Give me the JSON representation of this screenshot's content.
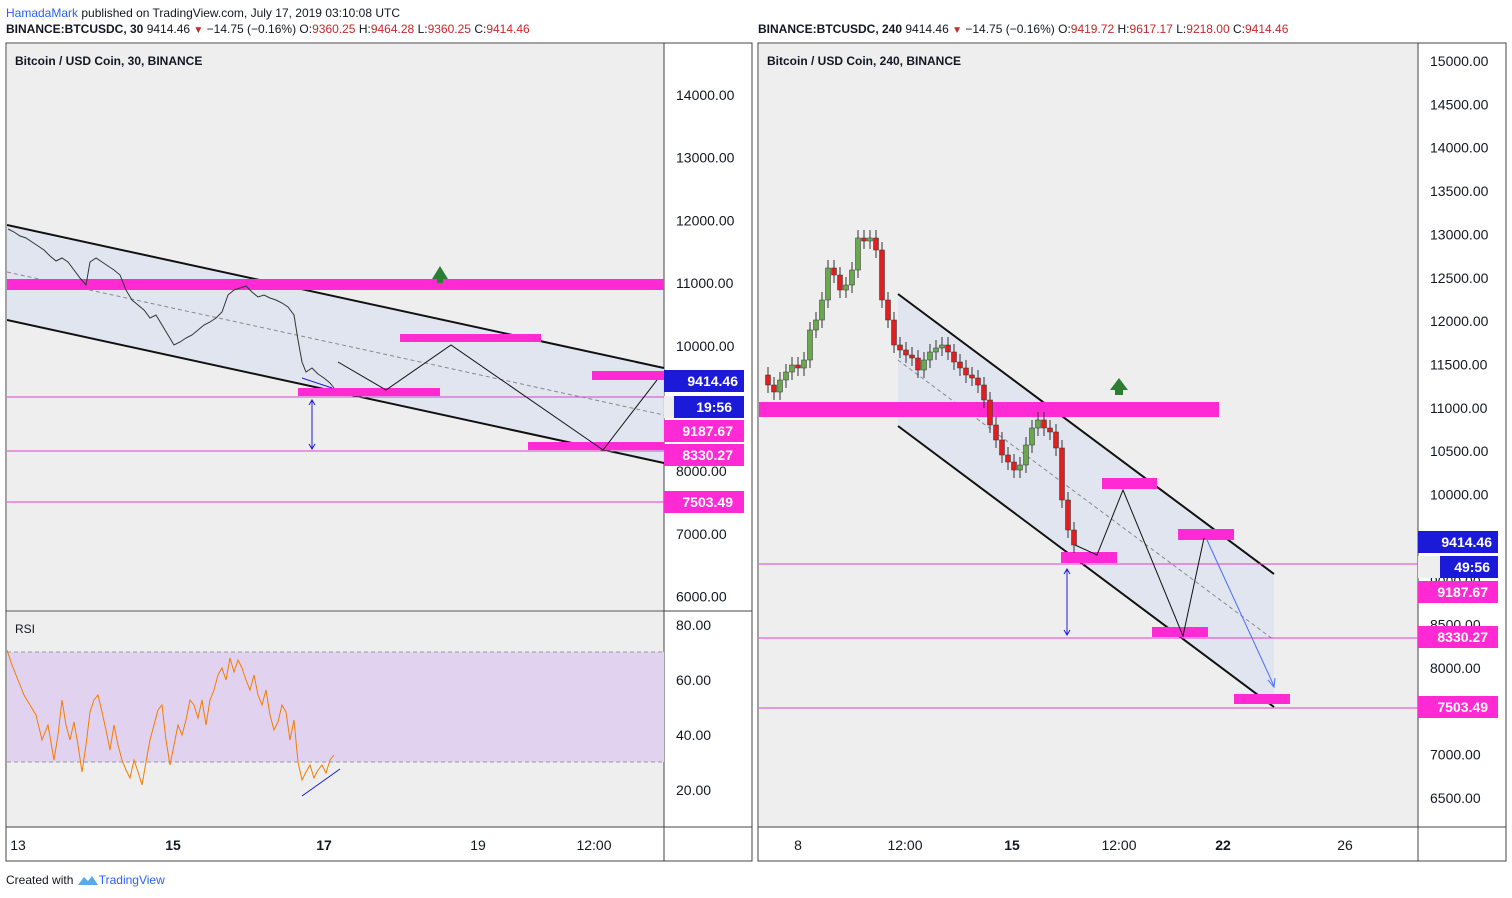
{
  "header": {
    "user": "HamadaMark",
    "published": "published on TradingView.com, July 17, 2019 03:10:08 UTC"
  },
  "left_panel": {
    "symbol": "BINANCE:BTCUSDC, 30",
    "last": "9414.46",
    "change": "−14.75 (−0.16%)",
    "o_label": "O:",
    "o": "9360.25",
    "h_label": "H:",
    "h": "9464.28",
    "l_label": "L:",
    "l": "9360.25",
    "c_label": "C:",
    "c": "9414.46",
    "title": "Bitcoin / USD Coin, 30, BINANCE",
    "indicator": "RSI",
    "price_ticks": [
      "14000.00",
      "13000.00",
      "12000.00",
      "11000.00",
      "10000.00",
      "9000.00",
      "8000.00",
      "7000.00",
      "6000.00"
    ],
    "rsi_ticks": [
      "80.00",
      "60.00",
      "40.00",
      "20.00"
    ],
    "time_ticks": [
      "13",
      "15",
      "17",
      "19",
      "12:00"
    ],
    "badges": {
      "last": "9414.46",
      "countdown": "19:56",
      "level1": "9187.67",
      "level2": "8330.27",
      "level3": "7503.49"
    }
  },
  "right_panel": {
    "symbol": "BINANCE:BTCUSDC, 240",
    "last": "9414.46",
    "change": "−14.75 (−0.16%)",
    "o_label": "O:",
    "o": "9419.72",
    "h_label": "H:",
    "h": "9617.17",
    "l_label": "L:",
    "l": "9218.00",
    "c_label": "C:",
    "c": "9414.46",
    "title": "Bitcoin / USD Coin, 240, BINANCE",
    "price_ticks": [
      "15000.00",
      "14500.00",
      "14000.00",
      "13500.00",
      "13000.00",
      "12500.00",
      "12000.00",
      "11500.00",
      "11000.00",
      "10500.00",
      "10000.00",
      "9500.00",
      "9000.00",
      "8500.00",
      "8000.00",
      "7500.00",
      "7000.00",
      "6500.00"
    ],
    "time_ticks": [
      "8",
      "12:00",
      "15",
      "12:00",
      "22",
      "26"
    ],
    "badges": {
      "last": "9414.46",
      "countdown": "49:56",
      "level1": "9187.67",
      "level2": "8330.27",
      "level3": "7503.49"
    }
  },
  "footer": {
    "created": "Created with",
    "brand": "TradingView"
  },
  "colors": {
    "zone": "#ff2ad4",
    "level": "#e040c8",
    "last_badge": "#1a1ad8",
    "up": "#6aa84f",
    "down": "#e02020",
    "rsi": "#f57c00",
    "arrow_up": "#2e7d32"
  },
  "chart_data": [
    {
      "type": "line",
      "title": "Bitcoin / USD Coin, 30, BINANCE",
      "xlabel": "",
      "ylabel": "",
      "x_ticks": [
        "13",
        "15",
        "17",
        "19",
        "12:00"
      ],
      "ylim": [
        5800,
        14800
      ],
      "series": [
        {
          "x": [
            "13",
            "14",
            "15",
            "16",
            "17"
          ],
          "values": [
            11850,
            10750,
            10050,
            10900,
            9414.46
          ]
        }
      ],
      "levels": [
        9187.67,
        8330.27,
        7503.49
      ],
      "zones": [
        [
          10900,
          11070
        ],
        [
          10070,
          10170
        ],
        [
          9150,
          9280
        ],
        [
          9470,
          9610
        ],
        [
          8330,
          8470
        ]
      ],
      "rsi": {
        "ylim": [
          10,
          85
        ],
        "band": [
          30,
          70
        ],
        "values": [
          68,
          50,
          38,
          29,
          45,
          30,
          40,
          28,
          55,
          33,
          65,
          28,
          36
        ]
      }
    },
    {
      "type": "line",
      "title": "Bitcoin / USD Coin, 240, BINANCE",
      "xlabel": "",
      "ylabel": "",
      "x_ticks": [
        "8",
        "12:00",
        "15",
        "12:00",
        "22",
        "26"
      ],
      "ylim": [
        6000,
        15200
      ],
      "series": [
        {
          "x": [
            "7",
            "8",
            "9",
            "10",
            "11",
            "12",
            "13",
            "14",
            "15",
            "16",
            "17"
          ],
          "values": [
            11200,
            11450,
            12800,
            12900,
            11500,
            11650,
            11200,
            10300,
            10900,
            10500,
            9414.46
          ]
        }
      ],
      "levels": [
        9187.67,
        8330.27,
        7503.49
      ],
      "zones": [
        [
          10900,
          11070
        ],
        [
          10050,
          10180
        ],
        [
          9290,
          9420
        ],
        [
          9100,
          9230
        ],
        [
          8320,
          8430
        ],
        [
          7540,
          7640
        ]
      ]
    }
  ]
}
